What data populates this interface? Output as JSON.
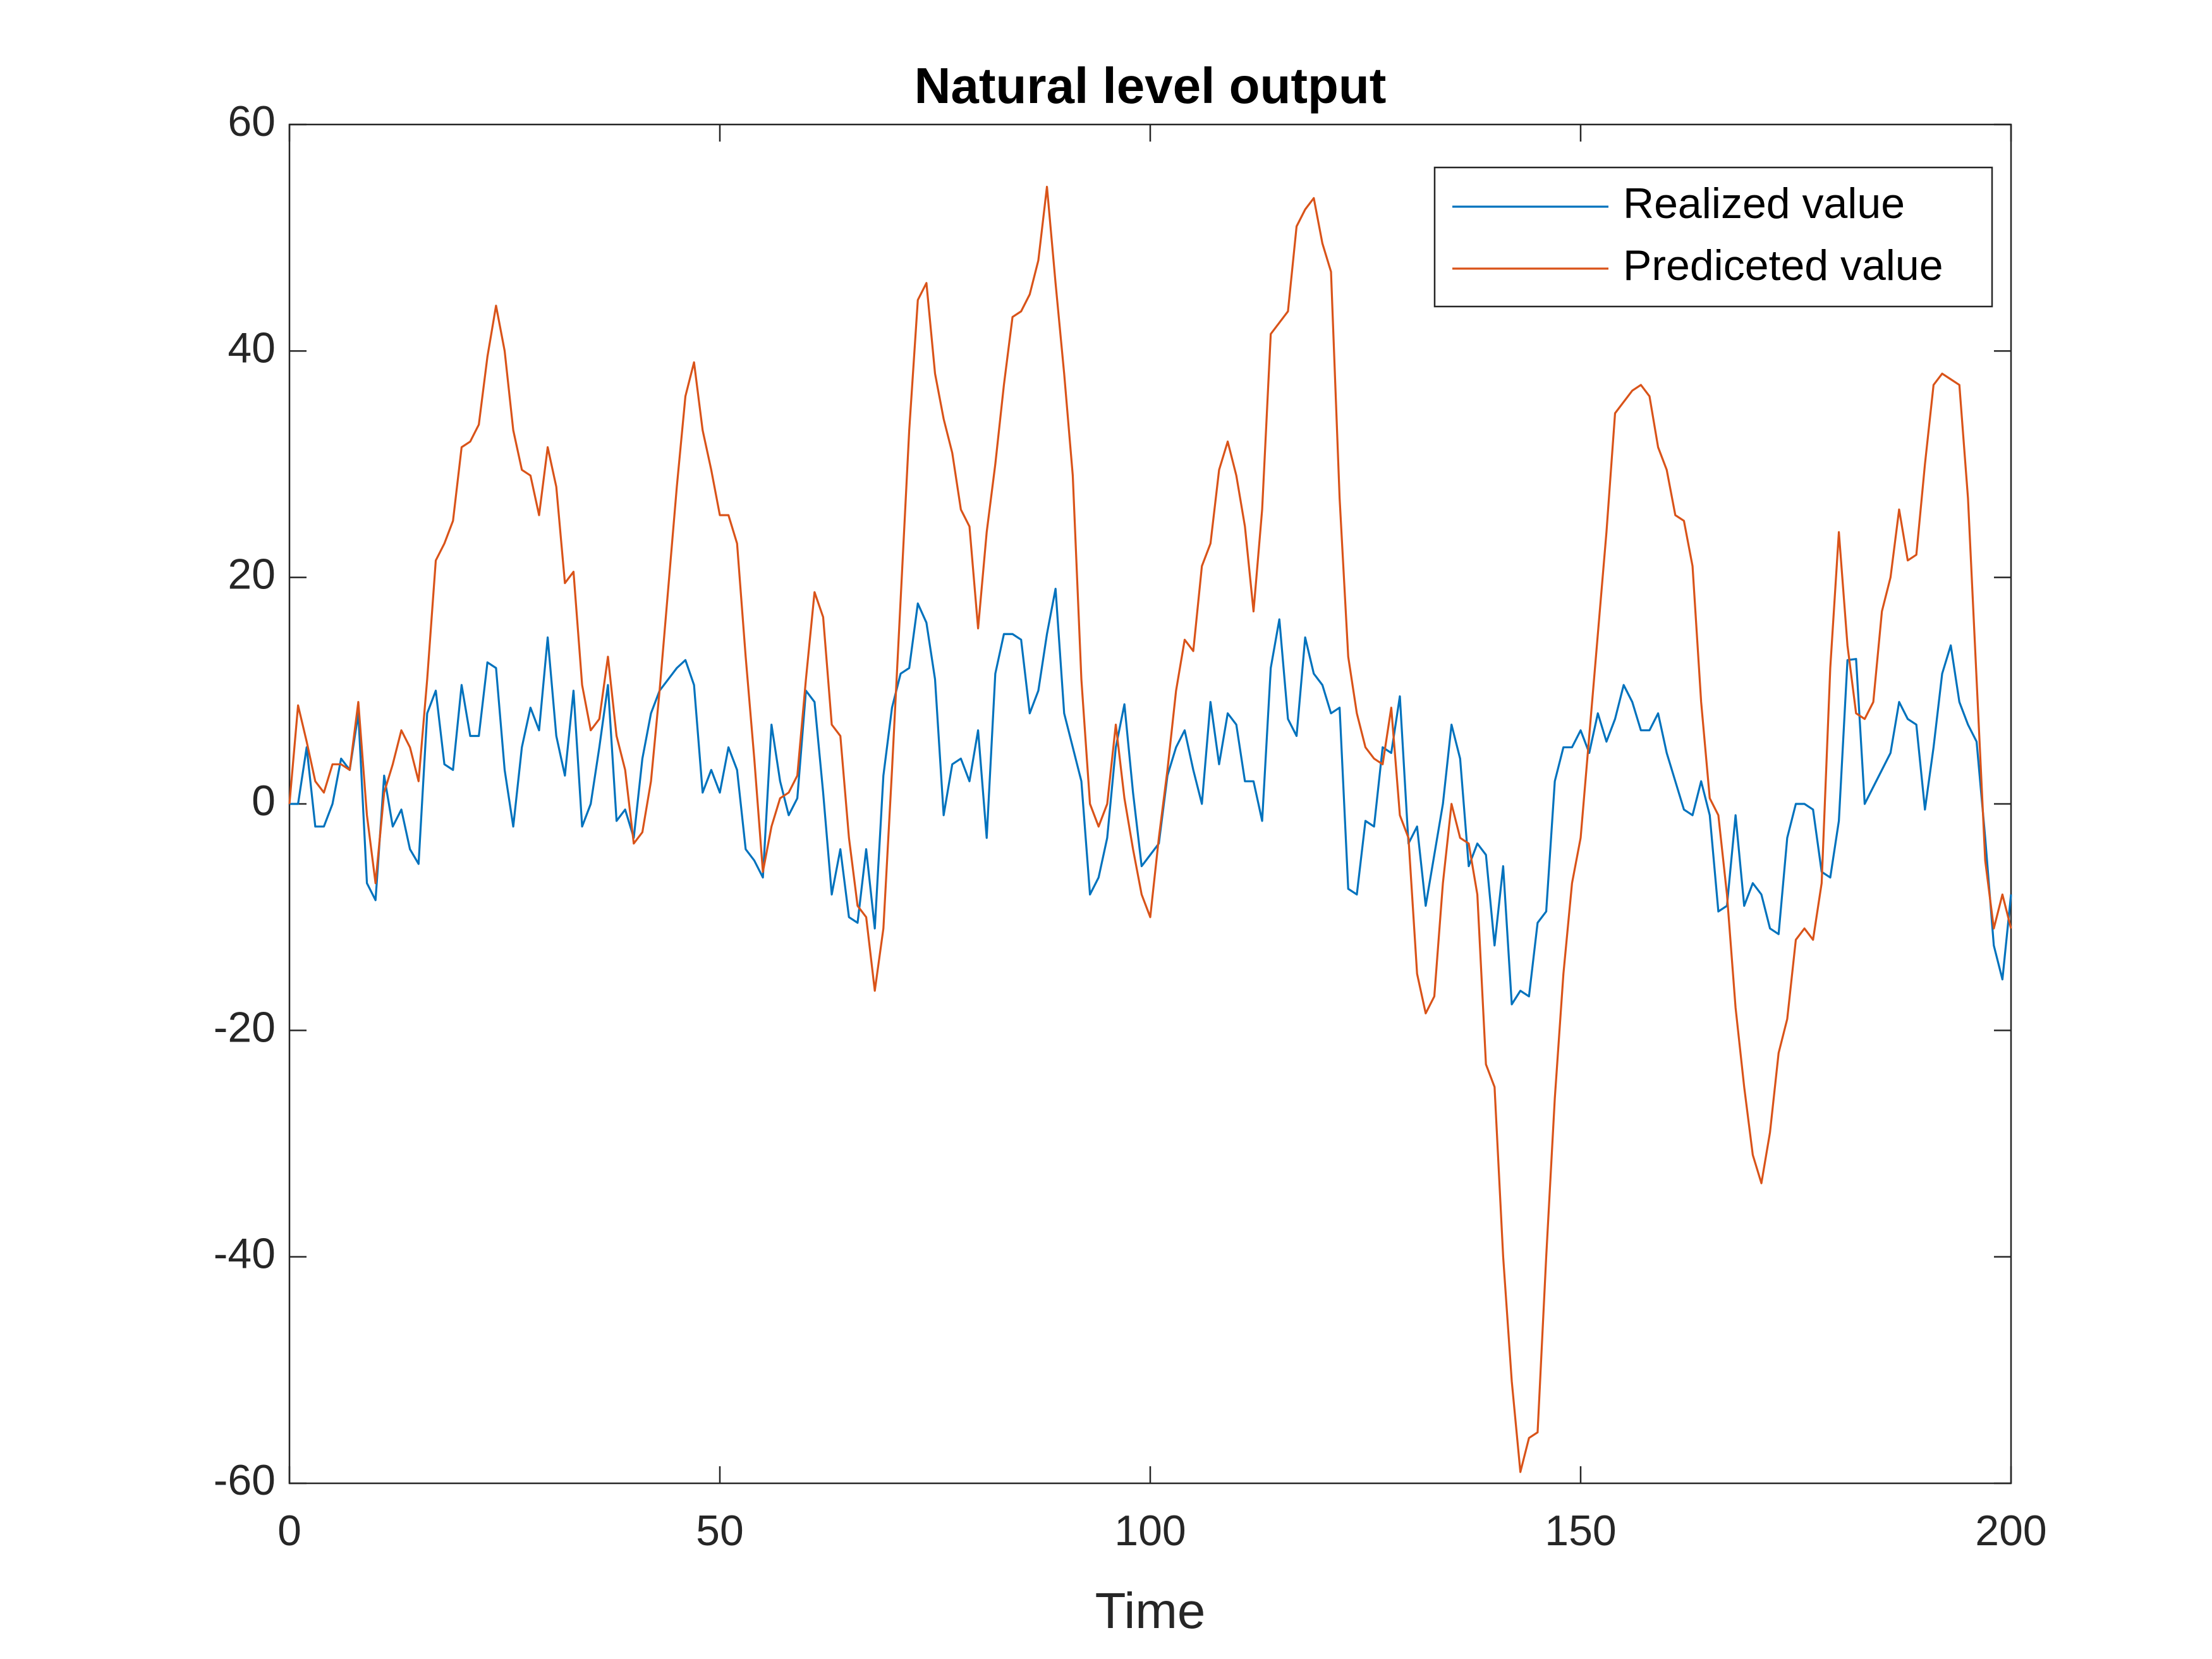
{
  "chart_data": {
    "type": "line",
    "title": "Natural level output",
    "x_label": "Time",
    "x": [
      0,
      1,
      2,
      3,
      4,
      5,
      6,
      7,
      8,
      9,
      10,
      11,
      12,
      13,
      14,
      15,
      16,
      17,
      18,
      19,
      20,
      21,
      22,
      23,
      24,
      25,
      26,
      27,
      28,
      29,
      30,
      31,
      32,
      33,
      34,
      35,
      36,
      37,
      38,
      39,
      40,
      41,
      42,
      43,
      44,
      45,
      46,
      47,
      48,
      49,
      50,
      51,
      52,
      53,
      54,
      55,
      56,
      57,
      58,
      59,
      60,
      61,
      62,
      63,
      64,
      65,
      66,
      67,
      68,
      69,
      70,
      71,
      72,
      73,
      74,
      75,
      76,
      77,
      78,
      79,
      80,
      81,
      82,
      83,
      84,
      85,
      86,
      87,
      88,
      89,
      90,
      91,
      92,
      93,
      94,
      95,
      96,
      97,
      98,
      99,
      100,
      101,
      102,
      103,
      104,
      105,
      106,
      107,
      108,
      109,
      110,
      111,
      112,
      113,
      114,
      115,
      116,
      117,
      118,
      119,
      120,
      121,
      122,
      123,
      124,
      125,
      126,
      127,
      128,
      129,
      130,
      131,
      132,
      133,
      134,
      135,
      136,
      137,
      138,
      139,
      140,
      141,
      142,
      143,
      144,
      145,
      146,
      147,
      148,
      149,
      150,
      151,
      152,
      153,
      154,
      155,
      156,
      157,
      158,
      159,
      160,
      161,
      162,
      163,
      164,
      165,
      166,
      167,
      168,
      169,
      170,
      171,
      172,
      173,
      174,
      175,
      176,
      177,
      178,
      179,
      180,
      181,
      182,
      183,
      184,
      185,
      186,
      187,
      188,
      189,
      190,
      191,
      192,
      193,
      194,
      195,
      196,
      197,
      198,
      199,
      200
    ],
    "series": [
      {
        "name": "Realized value",
        "color": "#0072bd",
        "values": [
          0,
          0,
          5,
          -2,
          -2,
          0,
          4,
          3,
          8,
          -7,
          -8.5,
          2.5,
          -2,
          -0.5,
          -4,
          -5.3,
          8,
          10,
          3.5,
          3,
          10.5,
          6,
          6,
          12.5,
          12,
          3,
          -2,
          5,
          8.5,
          6.5,
          14.7,
          6,
          2.5,
          10,
          -2,
          0,
          5,
          10.5,
          -1.5,
          -0.5,
          -3,
          4,
          8,
          10,
          11,
          12,
          12.7,
          10.5,
          1,
          3,
          1,
          5,
          3,
          -4,
          -5,
          -6.5,
          7,
          2,
          -1,
          0.5,
          10,
          9,
          1,
          -8,
          -4,
          -10,
          -10.5,
          -4,
          -11,
          2.5,
          8.5,
          11.5,
          12,
          17.7,
          16,
          11,
          -1,
          3.5,
          4,
          2,
          6.5,
          -3,
          11.5,
          15,
          15,
          14.5,
          8,
          10,
          15,
          19,
          8,
          5,
          2,
          -8,
          -6.5,
          -3,
          5,
          8.8,
          1,
          -5.5,
          -4.5,
          -3.5,
          2.5,
          5,
          6.5,
          3,
          0,
          9,
          3.5,
          8,
          7,
          2,
          2,
          -1.5,
          12,
          16.3,
          7.5,
          6,
          14.7,
          11.5,
          10.5,
          8,
          8.5,
          -7.5,
          -8,
          -1.5,
          -2,
          5,
          4.5,
          9.5,
          -3.5,
          -2,
          -9,
          -4.5,
          0,
          7,
          4,
          -5.5,
          -3.5,
          -4.5,
          -12.5,
          -5.5,
          -17.7,
          -16.5,
          -17,
          -10.5,
          -9.5,
          2,
          5,
          5,
          6.5,
          4.5,
          8,
          5.5,
          7.5,
          10.5,
          9,
          6.5,
          6.5,
          8,
          4.5,
          2,
          -0.5,
          -1,
          2,
          -1,
          -9.5,
          -9,
          -1,
          -9,
          -7,
          -8,
          -11,
          -11.5,
          -3,
          0,
          0,
          -0.5,
          -6,
          -6.5,
          -1.5,
          12.7,
          12.8,
          0,
          1.5,
          3,
          4.5,
          9,
          7.5,
          7,
          -0.5,
          5,
          11.5,
          14,
          9,
          7,
          5.5,
          -3,
          -12.5,
          -15.5,
          -8
        ]
      },
      {
        "name": "Prediceted value",
        "color": "#d95319",
        "values": [
          0,
          8.7,
          5.5,
          2,
          1,
          3.5,
          3.5,
          3,
          9,
          -1,
          -7,
          1,
          3.5,
          6.5,
          5,
          2,
          11,
          21.5,
          23,
          25,
          31.5,
          32,
          33.5,
          39.5,
          44,
          40,
          33,
          29.5,
          29,
          25.5,
          31.5,
          28,
          19.5,
          20.5,
          10.5,
          6.5,
          7.5,
          13,
          6,
          3,
          -3.5,
          -2.5,
          2,
          10,
          19,
          28,
          36,
          39,
          33,
          29.5,
          25.5,
          25.5,
          23,
          13,
          4,
          -6,
          -2,
          0.5,
          1,
          2.5,
          11,
          18.7,
          16.5,
          7,
          6,
          -3,
          -9,
          -10,
          -16.5,
          -11,
          3,
          18,
          33,
          44.5,
          46,
          38,
          34,
          31,
          26,
          24.5,
          15.5,
          24,
          30,
          37,
          43,
          43.5,
          45,
          48,
          54.5,
          46,
          38,
          29,
          11,
          0,
          -2,
          0,
          7,
          0.5,
          -4,
          -8,
          -10,
          -3,
          3,
          10,
          14.5,
          13.5,
          21,
          23,
          29.5,
          32,
          29,
          24.5,
          17,
          26,
          41.5,
          42.5,
          43.5,
          51,
          52.5,
          53.5,
          49.5,
          47,
          27,
          13,
          8,
          5,
          4,
          3.5,
          8.5,
          -1,
          -3,
          -15,
          -18.5,
          -17,
          -7,
          0,
          -3,
          -3.5,
          -8,
          -23,
          -25,
          -40,
          -51,
          -59,
          -56,
          -55.5,
          -40,
          -26,
          -15,
          -7,
          -3,
          6,
          15,
          24,
          34.5,
          35.5,
          36.5,
          37,
          36,
          31.5,
          29.5,
          25.5,
          25,
          21,
          9,
          0.5,
          -1,
          -8,
          -18,
          -25,
          -31,
          -33.5,
          -29,
          -22,
          -19,
          -12,
          -11,
          -12,
          -7,
          12,
          24,
          14,
          8,
          7.5,
          9,
          17,
          20,
          26,
          21.5,
          22,
          30,
          37,
          38,
          37.5,
          37,
          27,
          11,
          -5,
          -11,
          -8,
          -11
        ]
      }
    ],
    "xlim": [
      0,
      200
    ],
    "xticks": [
      0,
      50,
      100,
      150,
      200
    ],
    "ylim": [
      -60,
      60
    ],
    "yticks": [
      -60,
      -40,
      -20,
      0,
      20,
      40,
      60
    ],
    "legend": "northeast",
    "grid": false
  }
}
